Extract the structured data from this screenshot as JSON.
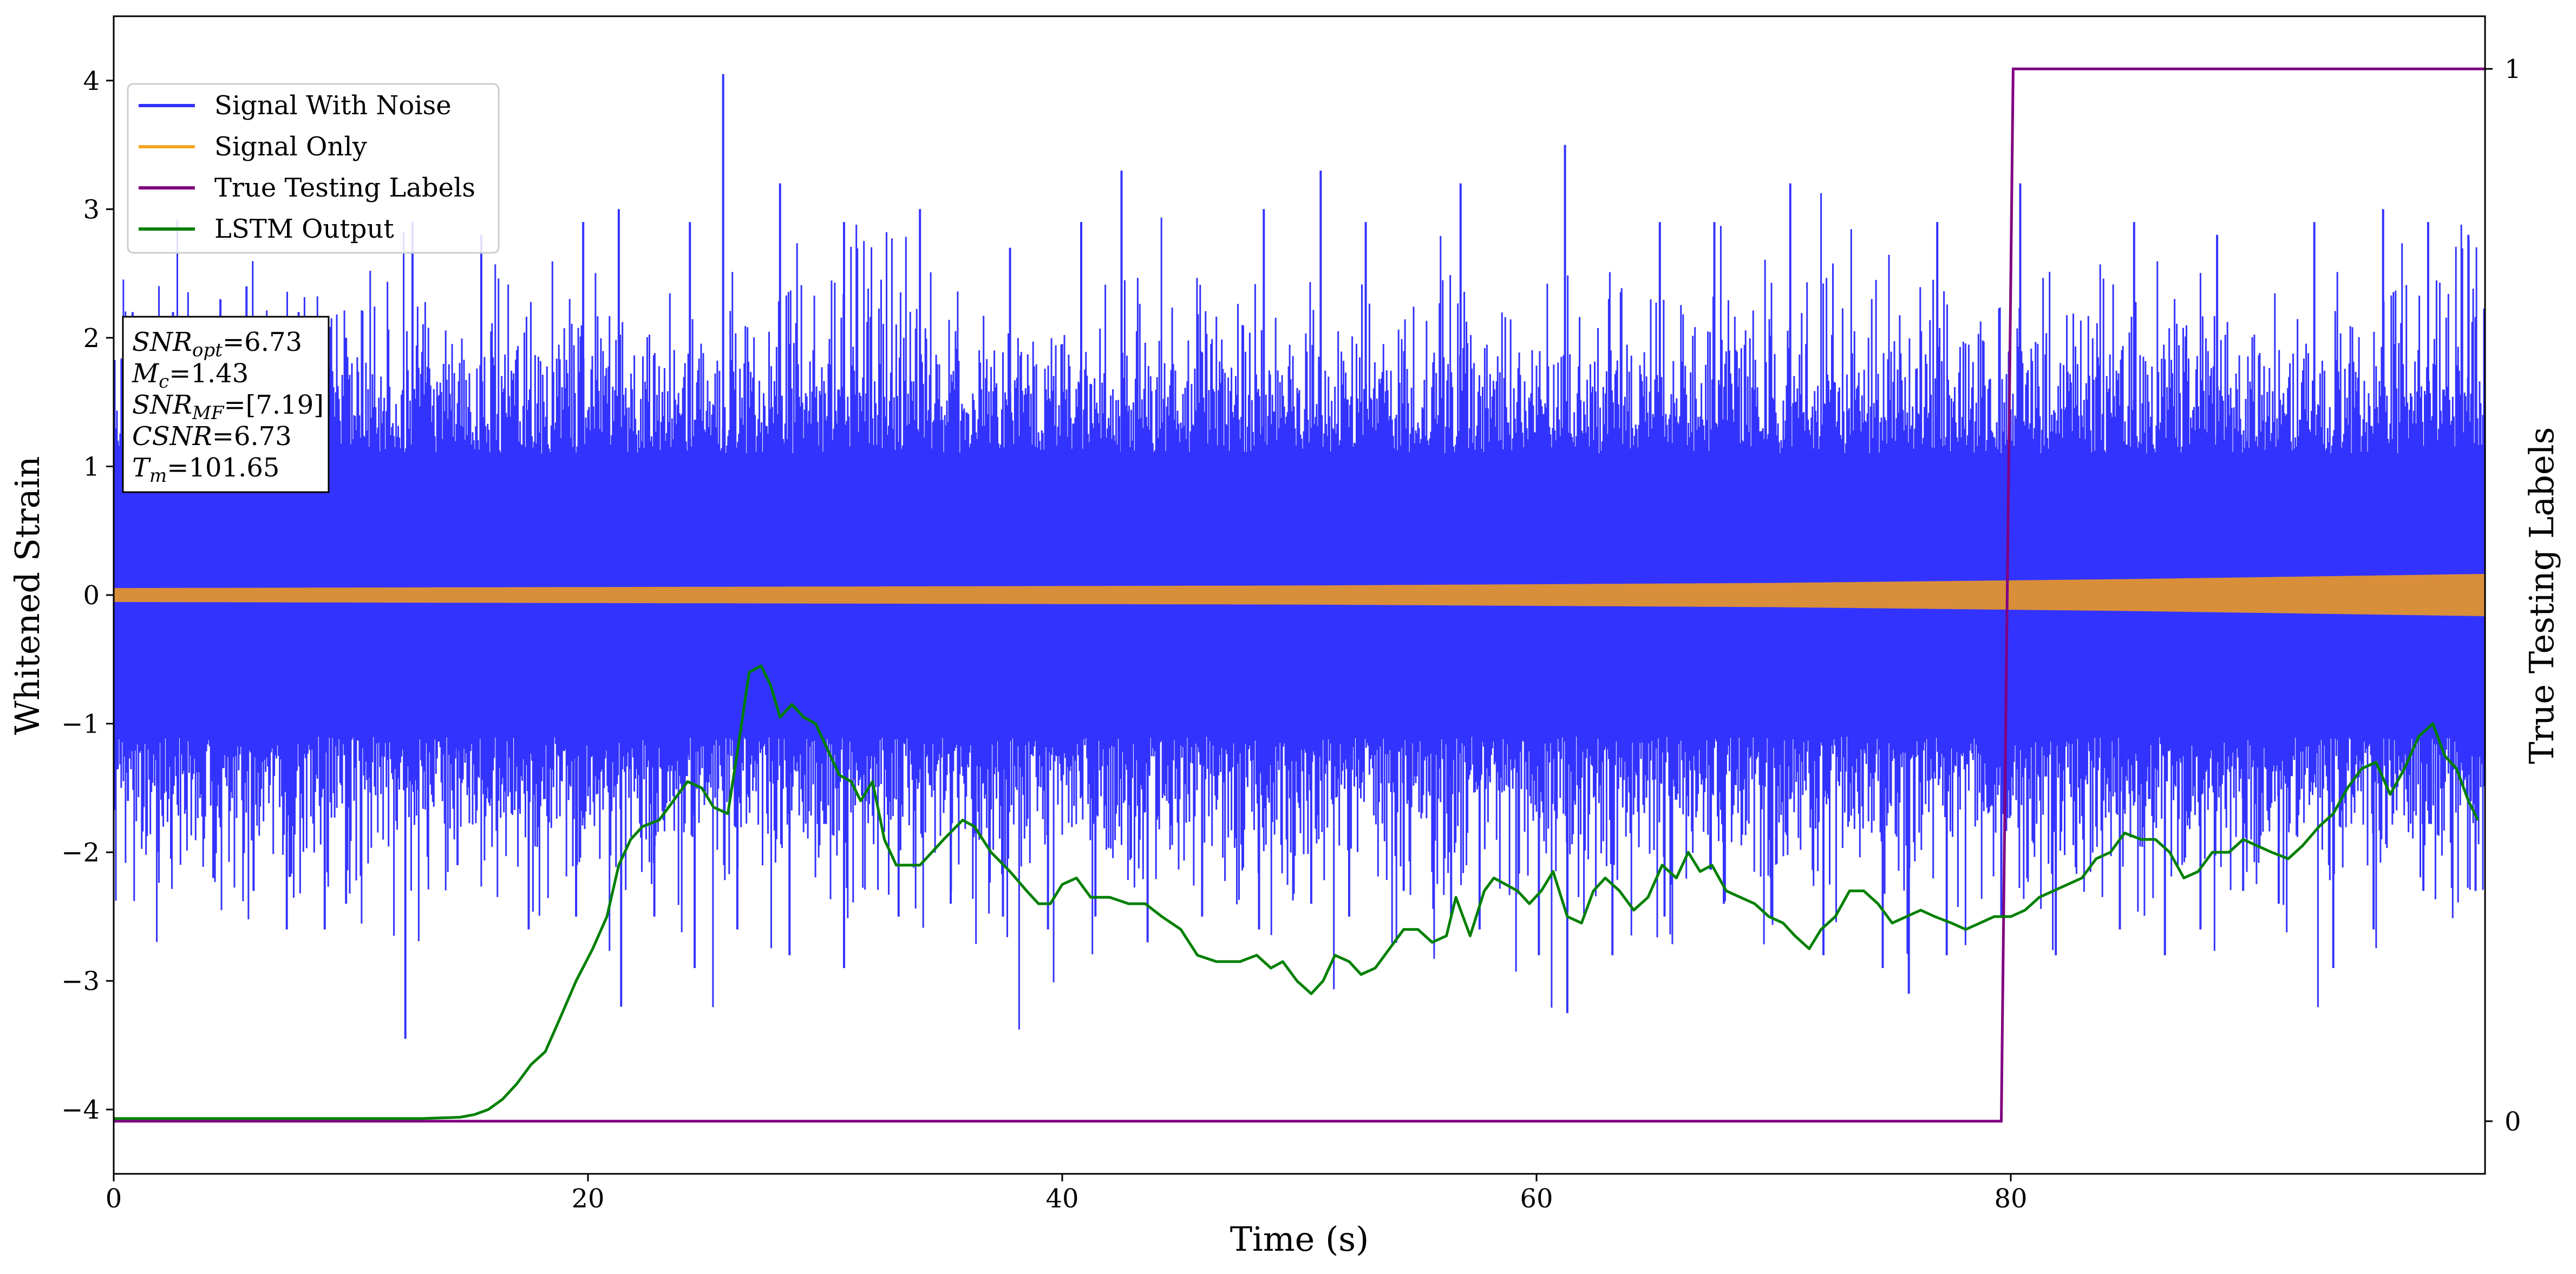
{
  "chart_data": {
    "type": "line",
    "xlabel": "Time (s)",
    "ylabel": "Whitened Strain",
    "y2label": "True Testing Labels",
    "xlim": [
      0,
      100
    ],
    "ylim": [
      -4.5,
      4.5
    ],
    "y2lim": [
      -0.05,
      1.05
    ],
    "xticks": [
      0,
      20,
      40,
      60,
      80
    ],
    "yticks": [
      -4,
      -3,
      -2,
      -1,
      0,
      1,
      2,
      3,
      4
    ],
    "y2ticks": [
      0,
      1
    ],
    "grid": false,
    "legend_position": "top-left",
    "series": [
      {
        "name": "Signal With Noise",
        "axis": "left",
        "color": "#3333ff",
        "style": "dense-noise",
        "band_typical": [
          -1.1,
          1.1
        ],
        "peaks_high": [
          [
            0.8,
            2.2
          ],
          [
            2.5,
            2.2
          ],
          [
            4.5,
            2.3
          ],
          [
            5.6,
            2.4
          ],
          [
            7.8,
            2.2
          ],
          [
            9.8,
            2.0
          ],
          [
            12.6,
            2.9
          ],
          [
            15.5,
            2.8
          ],
          [
            19.8,
            2.9
          ],
          [
            21.3,
            3.0
          ],
          [
            24.3,
            2.9
          ],
          [
            25.7,
            4.05
          ],
          [
            28.1,
            3.2
          ],
          [
            30.8,
            2.9
          ],
          [
            34.0,
            3.0
          ],
          [
            37.8,
            2.7
          ],
          [
            40.8,
            2.9
          ],
          [
            42.5,
            3.3
          ],
          [
            48.5,
            3.0
          ],
          [
            50.9,
            3.3
          ],
          [
            52.8,
            2.9
          ],
          [
            56.8,
            3.2
          ],
          [
            61.2,
            3.5
          ],
          [
            65.2,
            2.9
          ],
          [
            67.5,
            2.9
          ],
          [
            70.7,
            3.2
          ],
          [
            76.9,
            2.9
          ],
          [
            80.4,
            3.2
          ],
          [
            85.2,
            2.9
          ],
          [
            88.7,
            2.8
          ],
          [
            92.8,
            2.9
          ],
          [
            95.7,
            3.0
          ],
          [
            97.6,
            2.9
          ],
          [
            99.3,
            2.8
          ]
        ],
        "peaks_low": [
          [
            0.6,
            -1.6
          ],
          [
            1.9,
            -2.0
          ],
          [
            4.2,
            -2.2
          ],
          [
            5.9,
            -2.3
          ],
          [
            7.3,
            -2.6
          ],
          [
            8.9,
            -2.6
          ],
          [
            9.8,
            -2.4
          ],
          [
            12.3,
            -3.45
          ],
          [
            14.5,
            -2.1
          ],
          [
            17.5,
            -2.6
          ],
          [
            19.5,
            -2.5
          ],
          [
            21.4,
            -3.2
          ],
          [
            22.8,
            -2.5
          ],
          [
            24.5,
            -2.9
          ],
          [
            26.3,
            -2.6
          ],
          [
            28.5,
            -2.8
          ],
          [
            30.8,
            -2.9
          ],
          [
            33.1,
            -2.5
          ],
          [
            35.3,
            -2.4
          ],
          [
            37.5,
            -2.5
          ],
          [
            39.4,
            -2.6
          ],
          [
            41.4,
            -2.5
          ],
          [
            43.6,
            -2.7
          ],
          [
            45.9,
            -2.5
          ],
          [
            48.3,
            -2.6
          ],
          [
            50.5,
            -2.4
          ],
          [
            52.1,
            -2.5
          ],
          [
            54.4,
            -2.3
          ],
          [
            56.4,
            -2.5
          ],
          [
            57.6,
            -2.6
          ],
          [
            60.1,
            -2.8
          ],
          [
            61.3,
            -3.25
          ],
          [
            63.2,
            -2.8
          ],
          [
            65.4,
            -2.5
          ],
          [
            67.9,
            -2.4
          ],
          [
            69.9,
            -2.5
          ],
          [
            72.1,
            -2.8
          ],
          [
            74.6,
            -2.9
          ],
          [
            75.7,
            -3.1
          ],
          [
            77.3,
            -2.8
          ],
          [
            79.6,
            -2.5
          ],
          [
            81.9,
            -2.8
          ],
          [
            84.6,
            -2.6
          ],
          [
            86.5,
            -2.8
          ],
          [
            88.0,
            -2.6
          ],
          [
            89.8,
            -2.3
          ],
          [
            91.3,
            -2.4
          ],
          [
            93.6,
            -2.9
          ],
          [
            95.3,
            -2.6
          ],
          [
            97.4,
            -2.3
          ],
          [
            99.6,
            -2.3
          ]
        ]
      },
      {
        "name": "Signal Only",
        "axis": "left",
        "color": "#f5a623",
        "style": "chirp-band",
        "envelope": [
          [
            0,
            0.05
          ],
          [
            50,
            0.07
          ],
          [
            70,
            0.09
          ],
          [
            85,
            0.12
          ],
          [
            100,
            0.16
          ]
        ]
      },
      {
        "name": "True Testing Labels",
        "axis": "right",
        "color": "#800080",
        "style": "line",
        "points": [
          [
            0,
            0
          ],
          [
            79.6,
            0
          ],
          [
            80.1,
            1
          ],
          [
            100,
            1
          ]
        ]
      },
      {
        "name": "LSTM Output",
        "axis": "left",
        "color": "#008000",
        "style": "line",
        "points": [
          [
            0,
            -4.07
          ],
          [
            13.0,
            -4.07
          ],
          [
            14.6,
            -4.06
          ],
          [
            15.2,
            -4.04
          ],
          [
            15.8,
            -4.0
          ],
          [
            16.4,
            -3.92
          ],
          [
            17.0,
            -3.8
          ],
          [
            17.6,
            -3.65
          ],
          [
            18.2,
            -3.55
          ],
          [
            18.8,
            -3.3
          ],
          [
            19.5,
            -3.0
          ],
          [
            20.2,
            -2.75
          ],
          [
            20.8,
            -2.5
          ],
          [
            21.3,
            -2.1
          ],
          [
            21.8,
            -1.9
          ],
          [
            22.3,
            -1.8
          ],
          [
            23.0,
            -1.75
          ],
          [
            23.6,
            -1.6
          ],
          [
            24.2,
            -1.45
          ],
          [
            24.8,
            -1.5
          ],
          [
            25.3,
            -1.65
          ],
          [
            25.9,
            -1.7
          ],
          [
            26.4,
            -1.1
          ],
          [
            26.8,
            -0.6
          ],
          [
            27.3,
            -0.55
          ],
          [
            27.7,
            -0.7
          ],
          [
            28.1,
            -0.95
          ],
          [
            28.6,
            -0.85
          ],
          [
            29.1,
            -0.95
          ],
          [
            29.6,
            -1.0
          ],
          [
            30.1,
            -1.2
          ],
          [
            30.6,
            -1.4
          ],
          [
            31.1,
            -1.45
          ],
          [
            31.5,
            -1.6
          ],
          [
            32.0,
            -1.45
          ],
          [
            32.5,
            -1.9
          ],
          [
            33.0,
            -2.1
          ],
          [
            34.0,
            -2.1
          ],
          [
            35.0,
            -1.9
          ],
          [
            35.8,
            -1.75
          ],
          [
            36.3,
            -1.8
          ],
          [
            37.0,
            -2.0
          ],
          [
            37.8,
            -2.15
          ],
          [
            38.5,
            -2.3
          ],
          [
            39.0,
            -2.4
          ],
          [
            39.5,
            -2.4
          ],
          [
            40.0,
            -2.25
          ],
          [
            40.6,
            -2.2
          ],
          [
            41.2,
            -2.35
          ],
          [
            42.0,
            -2.35
          ],
          [
            42.8,
            -2.4
          ],
          [
            43.5,
            -2.4
          ],
          [
            44.2,
            -2.5
          ],
          [
            45.0,
            -2.6
          ],
          [
            45.7,
            -2.8
          ],
          [
            46.5,
            -2.85
          ],
          [
            47.5,
            -2.85
          ],
          [
            48.2,
            -2.8
          ],
          [
            48.8,
            -2.9
          ],
          [
            49.3,
            -2.85
          ],
          [
            49.9,
            -3.0
          ],
          [
            50.5,
            -3.1
          ],
          [
            51.0,
            -3.0
          ],
          [
            51.5,
            -2.8
          ],
          [
            52.1,
            -2.85
          ],
          [
            52.6,
            -2.95
          ],
          [
            53.2,
            -2.9
          ],
          [
            53.8,
            -2.75
          ],
          [
            54.4,
            -2.6
          ],
          [
            55.0,
            -2.6
          ],
          [
            55.6,
            -2.7
          ],
          [
            56.2,
            -2.65
          ],
          [
            56.6,
            -2.35
          ],
          [
            57.2,
            -2.65
          ],
          [
            57.8,
            -2.3
          ],
          [
            58.2,
            -2.2
          ],
          [
            58.7,
            -2.25
          ],
          [
            59.2,
            -2.3
          ],
          [
            59.7,
            -2.4
          ],
          [
            60.2,
            -2.3
          ],
          [
            60.7,
            -2.15
          ],
          [
            61.3,
            -2.5
          ],
          [
            61.9,
            -2.55
          ],
          [
            62.4,
            -2.3
          ],
          [
            62.9,
            -2.2
          ],
          [
            63.5,
            -2.3
          ],
          [
            64.1,
            -2.45
          ],
          [
            64.7,
            -2.35
          ],
          [
            65.3,
            -2.1
          ],
          [
            65.9,
            -2.2
          ],
          [
            66.4,
            -2.0
          ],
          [
            66.9,
            -2.15
          ],
          [
            67.4,
            -2.1
          ],
          [
            68.0,
            -2.3
          ],
          [
            68.6,
            -2.35
          ],
          [
            69.2,
            -2.4
          ],
          [
            69.8,
            -2.5
          ],
          [
            70.4,
            -2.55
          ],
          [
            70.9,
            -2.65
          ],
          [
            71.5,
            -2.75
          ],
          [
            72.0,
            -2.6
          ],
          [
            72.6,
            -2.5
          ],
          [
            73.2,
            -2.3
          ],
          [
            73.8,
            -2.3
          ],
          [
            74.4,
            -2.4
          ],
          [
            75.0,
            -2.55
          ],
          [
            75.6,
            -2.5
          ],
          [
            76.2,
            -2.45
          ],
          [
            76.8,
            -2.5
          ],
          [
            77.5,
            -2.55
          ],
          [
            78.1,
            -2.6
          ],
          [
            78.7,
            -2.55
          ],
          [
            79.3,
            -2.5
          ],
          [
            80.0,
            -2.5
          ],
          [
            80.6,
            -2.45
          ],
          [
            81.2,
            -2.35
          ],
          [
            81.8,
            -2.3
          ],
          [
            82.4,
            -2.25
          ],
          [
            83.0,
            -2.2
          ],
          [
            83.6,
            -2.05
          ],
          [
            84.2,
            -2.0
          ],
          [
            84.8,
            -1.85
          ],
          [
            85.5,
            -1.9
          ],
          [
            86.1,
            -1.9
          ],
          [
            86.7,
            -2.0
          ],
          [
            87.3,
            -2.2
          ],
          [
            87.9,
            -2.15
          ],
          [
            88.5,
            -2.0
          ],
          [
            89.2,
            -2.0
          ],
          [
            89.8,
            -1.9
          ],
          [
            90.4,
            -1.95
          ],
          [
            91.0,
            -2.0
          ],
          [
            91.7,
            -2.05
          ],
          [
            92.3,
            -1.95
          ],
          [
            93.0,
            -1.8
          ],
          [
            93.6,
            -1.7
          ],
          [
            94.2,
            -1.5
          ],
          [
            94.8,
            -1.35
          ],
          [
            95.4,
            -1.3
          ],
          [
            96.0,
            -1.55
          ],
          [
            96.6,
            -1.35
          ],
          [
            97.2,
            -1.1
          ],
          [
            97.8,
            -1.0
          ],
          [
            98.3,
            -1.25
          ],
          [
            98.8,
            -1.35
          ],
          [
            99.3,
            -1.6
          ],
          [
            99.7,
            -1.75
          ]
        ]
      }
    ],
    "annotation": {
      "lines": [
        {
          "var": "SNR",
          "sub": "opt",
          "value": "=6.73"
        },
        {
          "var": "M",
          "sub": "c",
          "value": "=1.43"
        },
        {
          "var": "SNR",
          "sub": "MF",
          "value": "=[7.19]"
        },
        {
          "var": "CSNR",
          "sub": "",
          "value": "=6.73"
        },
        {
          "var": "T",
          "sub": "m",
          "value": "=101.65"
        }
      ]
    }
  }
}
